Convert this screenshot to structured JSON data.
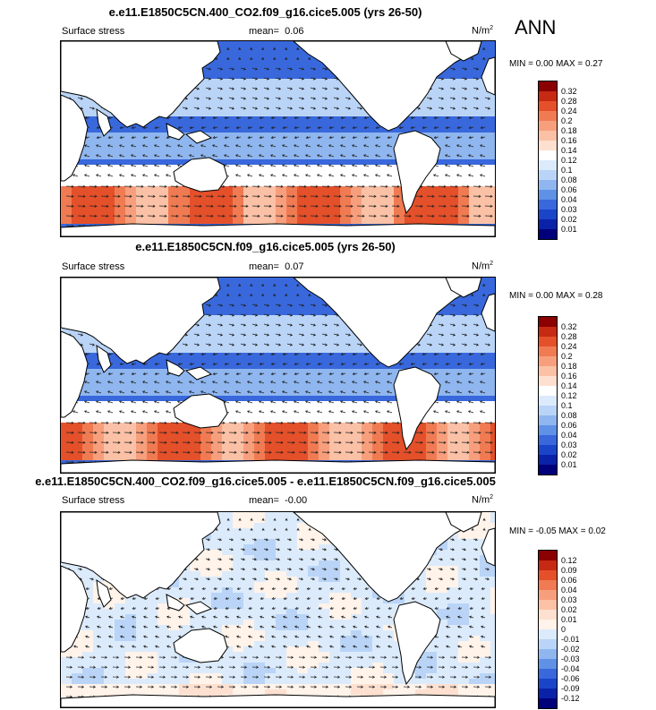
{
  "season": "ANN",
  "panels": [
    {
      "title": "e.e11.E1850C5CN.400_CO2.f09_g16.cice5.005 (yrs 26-50)",
      "left_label": "Surface stress",
      "mean_label": "mean=",
      "mean_value": "0.06",
      "units": "N/m",
      "units_sup": "2",
      "minmax": "MIN =  0.00 MAX =  0.27",
      "field": "absolute"
    },
    {
      "title": "e.e11.E1850C5CN.f09_g16.cice5.005 (yrs 26-50)",
      "left_label": "Surface stress",
      "mean_label": "mean=",
      "mean_value": "0.07",
      "units": "N/m",
      "units_sup": "2",
      "minmax": "MIN =  0.00 MAX =  0.28",
      "field": "absolute"
    },
    {
      "title": "e.e11.E1850C5CN.400_CO2.f09_g16.cice5.005 - e.e11.E1850C5CN.f09_g16.cice5.005",
      "left_label": "Surface stress",
      "mean_label": "mean=",
      "mean_value": "-0.00",
      "units": "N/m",
      "units_sup": "2",
      "minmax": "MIN = -0.05 MAX =  0.02",
      "field": "difference"
    }
  ],
  "colorbars": {
    "absolute": {
      "labels": [
        "0.32",
        "0.28",
        "0.24",
        "0.2",
        "0.18",
        "0.16",
        "0.14",
        "0.12",
        "0.1",
        "0.08",
        "0.06",
        "0.04",
        "0.03",
        "0.02",
        "0.01"
      ],
      "colors": [
        "#8b0000",
        "#c62a12",
        "#e4502a",
        "#f07b52",
        "#f79f7d",
        "#fbc1a6",
        "#fde0d0",
        "#ffffff",
        "#dcebfb",
        "#b9d4f6",
        "#8fb6ef",
        "#5f91e6",
        "#3868dc",
        "#1a45c9",
        "#0a22a8",
        "#00007a"
      ]
    },
    "difference": {
      "labels": [
        "0.12",
        "0.09",
        "0.06",
        "0.04",
        "0.03",
        "0.02",
        "0.01",
        "0",
        "-0.01",
        "-0.02",
        "-0.03",
        "-0.04",
        "-0.06",
        "-0.09",
        "-0.12"
      ],
      "colors": [
        "#8b0000",
        "#c62a12",
        "#e4502a",
        "#f07b52",
        "#f79f7d",
        "#fbc1a6",
        "#fde0d0",
        "#fff3ea",
        "#dcebfb",
        "#b9d4f6",
        "#8fb6ef",
        "#5f91e6",
        "#3868dc",
        "#1a45c9",
        "#0a22a8",
        "#00007a"
      ]
    }
  }
}
